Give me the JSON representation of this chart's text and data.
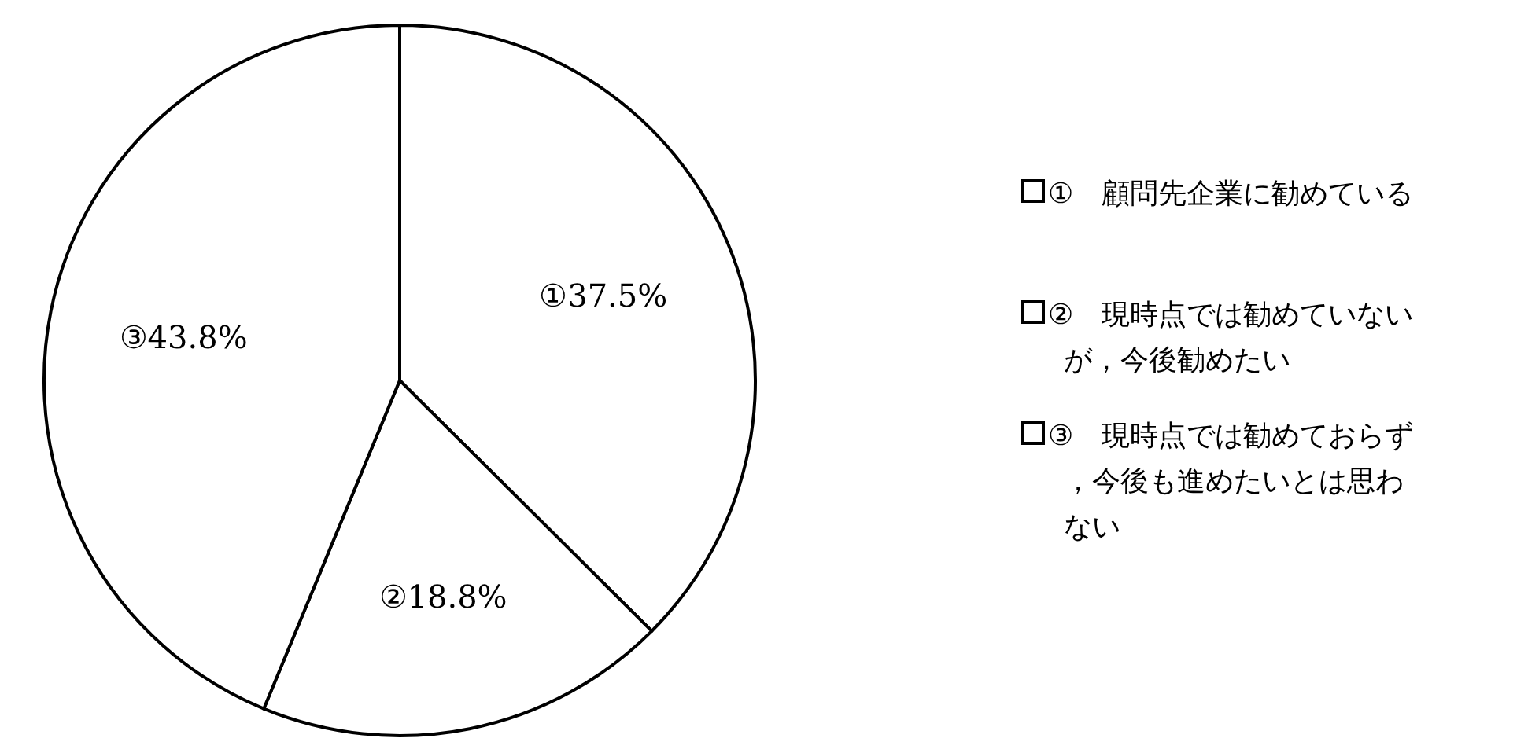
{
  "chart_data": {
    "type": "pie",
    "categories": [
      "①　顧問先企業に勧めている",
      "②　現時点では勧めていないが，今後勧めたい",
      "③　現時点では勧めておらず，今後も進めたいとは思わない"
    ],
    "values": [
      37.5,
      18.8,
      43.8
    ],
    "colors": [
      "#ffffff",
      "#ffffff",
      "#ffffff"
    ],
    "value_labels": [
      "①37.5%",
      "②18.8%",
      "③43.8%"
    ],
    "legend": "right"
  }
}
